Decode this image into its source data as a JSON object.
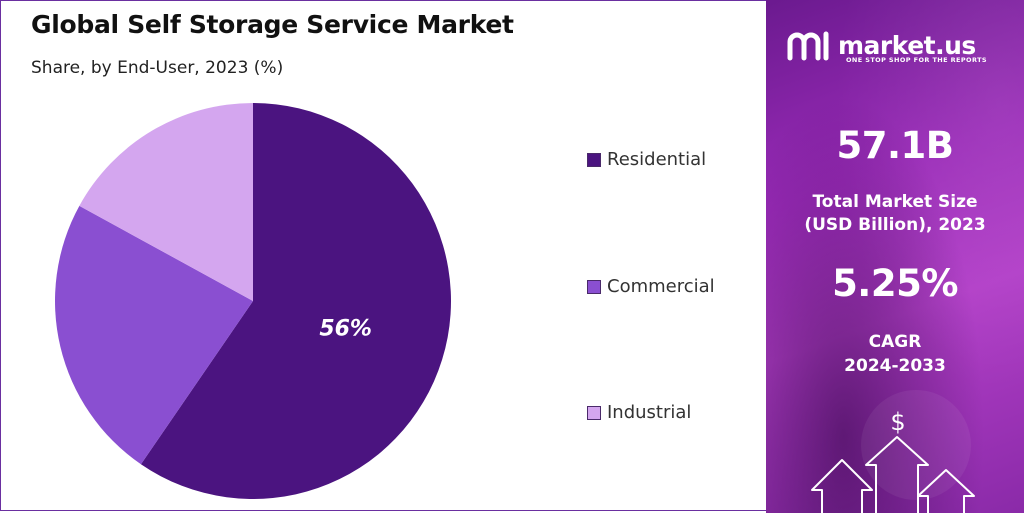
{
  "chart_data": {
    "type": "pie",
    "title": "Global Self Storage Service Market",
    "subtitle": "Share, by End-User, 2023 (%)",
    "categories": [
      "Residential",
      "Commercial",
      "Industrial"
    ],
    "values": [
      56,
      22,
      16
    ],
    "data_labels": [
      "56%",
      "",
      ""
    ],
    "colors": [
      "#4b1480",
      "#8a4fd1",
      "#d4a6ef"
    ],
    "legend_position": "right"
  },
  "brand": {
    "name": "market.us",
    "tagline": "ONE STOP SHOP FOR THE REPORTS"
  },
  "stats": {
    "market_size_value": "57.1B",
    "market_size_label_1": "Total Market Size",
    "market_size_label_2": "(USD Billion), 2023",
    "cagr_value": "5.25%",
    "cagr_label_1": "CAGR",
    "cagr_label_2": "2024-2033"
  },
  "decor": {
    "currency_symbol": "$"
  }
}
